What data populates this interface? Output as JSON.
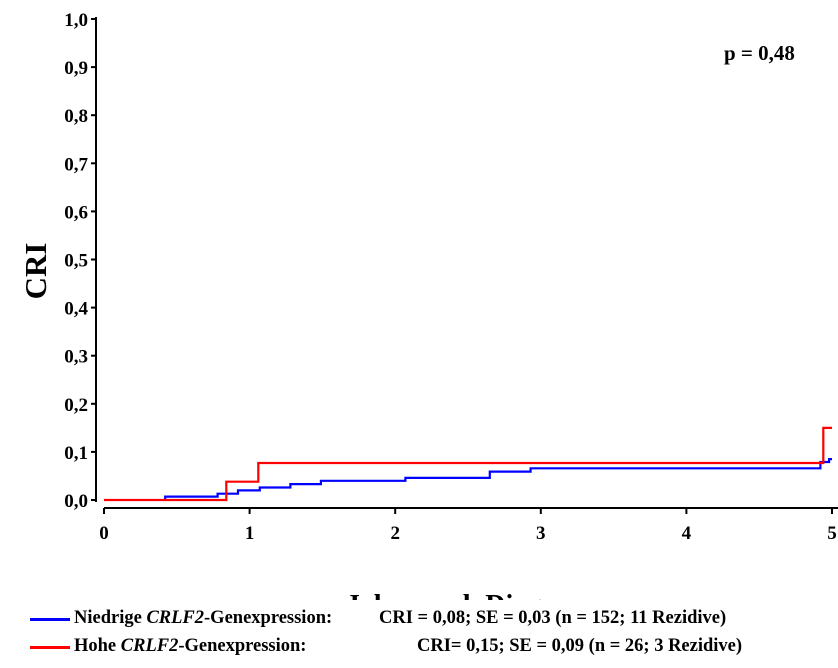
{
  "chart_data": {
    "type": "line",
    "step": true,
    "title": "",
    "xlabel": "Jahre nach Diagnose",
    "ylabel": "CRI",
    "xlim": [
      0,
      5
    ],
    "ylim": [
      0,
      1
    ],
    "x_ticks": [
      "0",
      "1",
      "2",
      "3",
      "4",
      "5"
    ],
    "y_ticks": [
      "0,0",
      "0,1",
      "0,2",
      "0,3",
      "0,4",
      "0,5",
      "0,6",
      "0,7",
      "0,8",
      "0,9",
      "1,0"
    ],
    "annotation": "p = 0,48",
    "grid": false,
    "series": [
      {
        "name": "Niedrige CRLF2-Genexpression",
        "color": "#0000ff",
        "points": [
          [
            0.42,
            0.0
          ],
          [
            0.42,
            0.007
          ],
          [
            0.78,
            0.007
          ],
          [
            0.78,
            0.013
          ],
          [
            0.92,
            0.013
          ],
          [
            0.92,
            0.02
          ],
          [
            1.07,
            0.02
          ],
          [
            1.07,
            0.026
          ],
          [
            1.28,
            0.026
          ],
          [
            1.28,
            0.033
          ],
          [
            1.49,
            0.033
          ],
          [
            1.49,
            0.04
          ],
          [
            2.07,
            0.04
          ],
          [
            2.07,
            0.046
          ],
          [
            2.65,
            0.046
          ],
          [
            2.65,
            0.059
          ],
          [
            2.93,
            0.059
          ],
          [
            2.93,
            0.066
          ],
          [
            4.92,
            0.066
          ],
          [
            4.92,
            0.079
          ],
          [
            4.98,
            0.079
          ],
          [
            4.98,
            0.085
          ],
          [
            5.0,
            0.085
          ]
        ]
      },
      {
        "name": "Hohe CRLF2-Genexpression",
        "color": "#ff0000",
        "points": [
          [
            0.0,
            0.0
          ],
          [
            0.84,
            0.0
          ],
          [
            0.84,
            0.038
          ],
          [
            1.06,
            0.038
          ],
          [
            1.06,
            0.077
          ],
          [
            4.94,
            0.077
          ],
          [
            4.94,
            0.15
          ],
          [
            5.0,
            0.15
          ]
        ]
      }
    ]
  },
  "legend": {
    "items": [
      {
        "name_pre": "Niedrige ",
        "name_gene": "CRLF2",
        "name_post": "-Genexpression:",
        "stats": "CRI = 0,08; SE = 0,03 (n = 152; 11 Rezidive)",
        "color": "#0000ff"
      },
      {
        "name_pre": "Hohe ",
        "name_gene": "CRLF2",
        "name_post": "-Genexpression:",
        "stats": "CRI= 0,15; SE = 0,09 (n = 26; 3 Rezidive)",
        "color": "#ff0000"
      }
    ]
  }
}
